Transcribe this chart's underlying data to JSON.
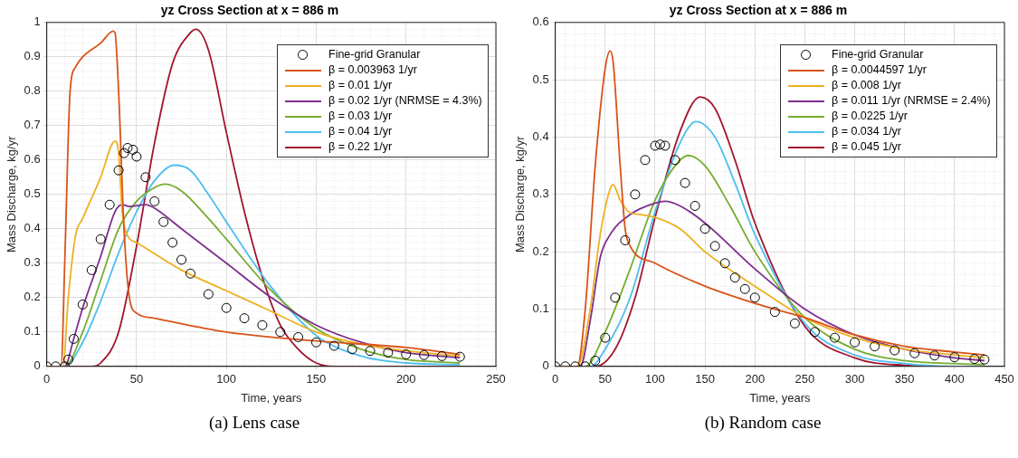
{
  "chart_data": [
    {
      "type": "line",
      "title": "yz Cross Section at x = 886 m",
      "xlabel": "Time, years",
      "ylabel": "Mass Discharge, kg/yr",
      "annotations": [
        "(a) Lens case"
      ],
      "xlim": [
        0,
        250
      ],
      "xticks": [
        0,
        50,
        100,
        150,
        200,
        250
      ],
      "ylim": [
        0,
        1
      ],
      "yticks": [
        0,
        0.1,
        0.2,
        0.3,
        0.4,
        0.5,
        0.6,
        0.7,
        0.8,
        0.9,
        1
      ],
      "grid": true,
      "legend": "top right",
      "series": [
        {
          "name": "Fine-grid Granular",
          "type": "scatter",
          "marker": "circle",
          "color": "#000000",
          "x": [
            0,
            5,
            10,
            12,
            15,
            20,
            25,
            30,
            35,
            40,
            43,
            45,
            48,
            50,
            55,
            60,
            65,
            70,
            75,
            80,
            90,
            100,
            110,
            120,
            130,
            140,
            150,
            160,
            170,
            180,
            190,
            200,
            210,
            220,
            230
          ],
          "values": [
            0,
            0,
            0,
            0.02,
            0.08,
            0.18,
            0.28,
            0.37,
            0.47,
            0.57,
            0.62,
            0.635,
            0.63,
            0.61,
            0.55,
            0.48,
            0.42,
            0.36,
            0.31,
            0.27,
            0.21,
            0.17,
            0.14,
            0.12,
            0.1,
            0.085,
            0.07,
            0.06,
            0.05,
            0.045,
            0.04,
            0.035,
            0.033,
            0.03,
            0.028
          ]
        },
        {
          "name": "β = 0.003963 1/yr",
          "type": "line",
          "color": "#d95319",
          "x": [
            0,
            8,
            10,
            13,
            16,
            20,
            30,
            37,
            38,
            40,
            43,
            46,
            50,
            60,
            100,
            150,
            200,
            230
          ],
          "values": [
            0,
            0,
            0.3,
            0.8,
            0.87,
            0.9,
            0.94,
            0.975,
            0.97,
            0.8,
            0.4,
            0.2,
            0.155,
            0.14,
            0.1,
            0.074,
            0.055,
            0.035
          ]
        },
        {
          "name": "β = 0.01 1/yr",
          "type": "line",
          "color": "#edb120",
          "x": [
            0,
            9,
            12,
            16,
            20,
            30,
            38,
            40,
            42,
            45,
            50,
            75,
            100,
            125,
            150,
            175,
            200,
            230
          ],
          "values": [
            0,
            0,
            0.2,
            0.38,
            0.43,
            0.55,
            0.655,
            0.62,
            0.45,
            0.38,
            0.36,
            0.28,
            0.22,
            0.16,
            0.1,
            0.065,
            0.045,
            0.03
          ]
        },
        {
          "name": "β = 0.02 1/yr (NRMSE = 4.3%)",
          "type": "line",
          "color": "#7e2f8e",
          "x": [
            0,
            10,
            15,
            20,
            30,
            38,
            42,
            46,
            55,
            60,
            75,
            100,
            125,
            150,
            175,
            200,
            230
          ],
          "values": [
            0,
            0,
            0.08,
            0.17,
            0.32,
            0.45,
            0.47,
            0.465,
            0.47,
            0.46,
            0.4,
            0.3,
            0.2,
            0.12,
            0.07,
            0.04,
            0.025
          ]
        },
        {
          "name": "β = 0.03 1/yr",
          "type": "line",
          "color": "#77ac30",
          "x": [
            0,
            10,
            20,
            30,
            40,
            50,
            60,
            66,
            75,
            90,
            100,
            125,
            150,
            175,
            200,
            230
          ],
          "values": [
            0,
            0,
            0.1,
            0.25,
            0.4,
            0.48,
            0.52,
            0.53,
            0.51,
            0.43,
            0.37,
            0.22,
            0.11,
            0.05,
            0.02,
            0.01
          ]
        },
        {
          "name": "β = 0.04 1/yr",
          "type": "line",
          "color": "#4dbeee",
          "x": [
            0,
            10,
            20,
            30,
            40,
            50,
            60,
            71,
            80,
            90,
            100,
            125,
            150,
            175,
            200,
            230
          ],
          "values": [
            0,
            0,
            0.07,
            0.19,
            0.33,
            0.45,
            0.54,
            0.585,
            0.57,
            0.5,
            0.42,
            0.23,
            0.09,
            0.03,
            0.01,
            0.005
          ]
        },
        {
          "name": "β = 0.22 1/yr",
          "type": "line",
          "color": "#a2142f",
          "x": [
            0,
            25,
            30,
            40,
            50,
            60,
            70,
            80,
            83,
            90,
            100,
            110,
            120,
            130,
            140,
            150,
            160,
            230
          ],
          "values": [
            0,
            0,
            0.01,
            0.1,
            0.35,
            0.65,
            0.88,
            0.97,
            0.98,
            0.92,
            0.68,
            0.45,
            0.26,
            0.12,
            0.05,
            0.01,
            0,
            0
          ]
        }
      ]
    },
    {
      "type": "line",
      "title": "yz Cross Section at x = 886 m",
      "xlabel": "Time, years",
      "ylabel": "Mass Discharge, kg/yr",
      "annotations": [
        "(b) Random case"
      ],
      "xlim": [
        0,
        450
      ],
      "xticks": [
        0,
        50,
        100,
        150,
        200,
        250,
        300,
        350,
        400,
        450
      ],
      "ylim": [
        0,
        0.6
      ],
      "yticks": [
        0,
        0.1,
        0.2,
        0.3,
        0.4,
        0.5,
        0.6
      ],
      "grid": true,
      "legend": "top right",
      "series": [
        {
          "name": "Fine-grid Granular",
          "type": "scatter",
          "marker": "circle",
          "color": "#000000",
          "x": [
            0,
            10,
            20,
            30,
            40,
            50,
            60,
            70,
            80,
            90,
            100,
            105,
            110,
            120,
            130,
            140,
            150,
            160,
            170,
            180,
            190,
            200,
            220,
            240,
            260,
            280,
            300,
            320,
            340,
            360,
            380,
            400,
            420,
            430
          ],
          "values": [
            0,
            0,
            0,
            0,
            0.01,
            0.05,
            0.12,
            0.22,
            0.3,
            0.36,
            0.385,
            0.387,
            0.385,
            0.36,
            0.32,
            0.28,
            0.24,
            0.21,
            0.18,
            0.155,
            0.135,
            0.12,
            0.095,
            0.075,
            0.06,
            0.05,
            0.042,
            0.035,
            0.028,
            0.023,
            0.019,
            0.016,
            0.013,
            0.012
          ]
        },
        {
          "name": "β = 0.0044597 1/yr",
          "type": "line",
          "color": "#d95319",
          "x": [
            0,
            22,
            30,
            40,
            50,
            55,
            58,
            65,
            70,
            75,
            100,
            150,
            200,
            250,
            300,
            350,
            400,
            430
          ],
          "values": [
            0,
            0,
            0.1,
            0.35,
            0.52,
            0.55,
            0.53,
            0.35,
            0.24,
            0.21,
            0.18,
            0.14,
            0.11,
            0.085,
            0.055,
            0.035,
            0.025,
            0.02
          ]
        },
        {
          "name": "β = 0.008 1/yr",
          "type": "line",
          "color": "#edb120",
          "x": [
            0,
            22,
            35,
            45,
            55,
            58,
            65,
            75,
            85,
            100,
            125,
            150,
            200,
            250,
            300,
            350,
            400,
            430
          ],
          "values": [
            0,
            0,
            0.1,
            0.23,
            0.31,
            0.317,
            0.29,
            0.268,
            0.265,
            0.26,
            0.24,
            0.2,
            0.14,
            0.085,
            0.05,
            0.03,
            0.02,
            0.015
          ]
        },
        {
          "name": "β = 0.011 1/yr (NRMSE = 2.4%)",
          "type": "line",
          "color": "#7e2f8e",
          "x": [
            0,
            25,
            35,
            45,
            55,
            75,
            100,
            110,
            125,
            150,
            200,
            250,
            300,
            350,
            400,
            430
          ],
          "values": [
            0,
            0,
            0.08,
            0.19,
            0.23,
            0.265,
            0.285,
            0.288,
            0.28,
            0.25,
            0.17,
            0.1,
            0.055,
            0.03,
            0.015,
            0.01
          ]
        },
        {
          "name": "β = 0.0225 1/yr",
          "type": "line",
          "color": "#77ac30",
          "x": [
            0,
            30,
            50,
            75,
            100,
            120,
            133,
            150,
            175,
            200,
            250,
            300,
            350,
            400,
            430
          ],
          "values": [
            0,
            0,
            0.06,
            0.17,
            0.29,
            0.35,
            0.368,
            0.35,
            0.28,
            0.2,
            0.085,
            0.03,
            0.01,
            0.005,
            0.003
          ]
        },
        {
          "name": "β = 0.034 1/yr",
          "type": "line",
          "color": "#4dbeee",
          "x": [
            0,
            35,
            50,
            75,
            100,
            125,
            141,
            160,
            180,
            200,
            250,
            300,
            350,
            400,
            430
          ],
          "values": [
            0,
            0,
            0.03,
            0.12,
            0.27,
            0.39,
            0.427,
            0.4,
            0.32,
            0.23,
            0.075,
            0.02,
            0.005,
            0,
            0
          ]
        },
        {
          "name": "β = 0.045 1/yr",
          "type": "line",
          "color": "#a2142f",
          "x": [
            0,
            40,
            60,
            80,
            100,
            125,
            145,
            160,
            180,
            200,
            250,
            300,
            350,
            400,
            430
          ],
          "values": [
            0,
            0,
            0.03,
            0.12,
            0.26,
            0.41,
            0.47,
            0.45,
            0.36,
            0.25,
            0.07,
            0.015,
            0.002,
            0,
            0
          ]
        }
      ]
    }
  ]
}
